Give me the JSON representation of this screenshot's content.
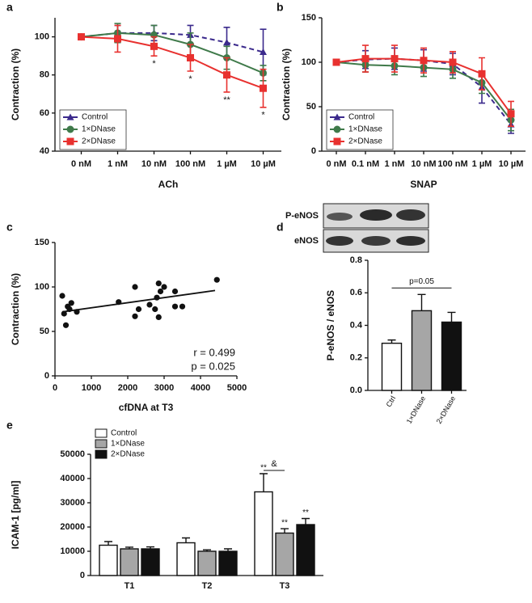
{
  "chart_data": [
    {
      "label": "a",
      "type": "line",
      "xlabel": "ACh",
      "ylabel": "Contraction (%)",
      "categories": [
        "0 nM",
        "1 nM",
        "10 nM",
        "100 nM",
        "1 µM",
        "10 µM"
      ],
      "ylim": [
        40,
        110
      ],
      "yticks": [
        40,
        60,
        80,
        100
      ],
      "legend": "lower left",
      "series": [
        {
          "name": "Control",
          "color": "#3b2a8c",
          "linestyle": "dashed",
          "marker": "triangle",
          "values": [
            100,
            102,
            102,
            101,
            97,
            92
          ],
          "errors": [
            0,
            4,
            4,
            5,
            8,
            12
          ]
        },
        {
          "name": "1×DNase",
          "color": "#3f7a4a",
          "linestyle": "solid",
          "marker": "circle",
          "values": [
            100,
            102,
            101,
            96,
            89,
            81
          ],
          "errors": [
            0,
            5,
            5,
            6,
            6,
            4
          ]
        },
        {
          "name": "2×DNase",
          "color": "#e8312f",
          "linestyle": "solid",
          "marker": "square",
          "values": [
            100,
            99,
            95,
            89,
            80,
            73
          ],
          "errors": [
            0,
            7,
            5,
            7,
            9,
            10
          ]
        }
      ],
      "significance": [
        null,
        null,
        "*",
        "*",
        "**",
        "*"
      ]
    },
    {
      "label": "b",
      "type": "line",
      "xlabel": "SNAP",
      "ylabel": "Contraction (%)",
      "categories": [
        "0 nM",
        "0.1 nM",
        "1 nM",
        "10 nM",
        "100 nM",
        "1 µM",
        "10 µM"
      ],
      "ylim": [
        0,
        150
      ],
      "yticks": [
        0,
        50,
        100,
        150
      ],
      "legend": "lower left",
      "series": [
        {
          "name": "Control",
          "color": "#3b2a8c",
          "linestyle": "dashed",
          "marker": "triangle",
          "values": [
            100,
            103,
            104,
            102,
            98,
            72,
            30
          ],
          "errors": [
            0,
            10,
            12,
            12,
            12,
            18,
            10
          ]
        },
        {
          "name": "1×DNase",
          "color": "#3f7a4a",
          "linestyle": "solid",
          "marker": "circle",
          "values": [
            100,
            97,
            96,
            94,
            92,
            77,
            35
          ],
          "errors": [
            0,
            8,
            10,
            10,
            10,
            12,
            12
          ]
        },
        {
          "name": "2×DNase",
          "color": "#e8312f",
          "linestyle": "solid",
          "marker": "square",
          "values": [
            100,
            104,
            104,
            102,
            100,
            87,
            42
          ],
          "errors": [
            0,
            15,
            15,
            14,
            12,
            18,
            14
          ]
        }
      ]
    },
    {
      "label": "c",
      "type": "scatter",
      "xlabel": "cfDNA at T3",
      "ylabel": "Contraction (%)",
      "xlim": [
        0,
        5000
      ],
      "xticks": [
        0,
        1000,
        2000,
        3000,
        4000,
        5000
      ],
      "ylim": [
        0,
        150
      ],
      "yticks": [
        0,
        50,
        100,
        150
      ],
      "x": [
        200,
        250,
        300,
        350,
        400,
        450,
        600,
        1750,
        2200,
        2200,
        2300,
        2600,
        2750,
        2800,
        2850,
        2850,
        2900,
        3000,
        3300,
        3300,
        3500,
        4450
      ],
      "y": [
        90,
        70,
        57,
        78,
        75,
        82,
        72,
        83,
        100,
        67,
        75,
        80,
        75,
        88,
        104,
        66,
        95,
        100,
        95,
        78,
        78,
        108
      ],
      "fit": {
        "x": [
          200,
          4400
        ],
        "y": [
          72,
          96
        ]
      },
      "annotations": [
        "r = 0.499",
        "p = 0.025"
      ]
    },
    {
      "label": "d",
      "type": "bar",
      "ylabel": "P-eNOS / eNOS",
      "blot_labels": [
        "P-eNOS",
        "eNOS"
      ],
      "categories": [
        "Ctrl",
        "1×DNase",
        "2×DNase"
      ],
      "values": [
        0.29,
        0.49,
        0.42
      ],
      "errors": [
        0.02,
        0.1,
        0.06
      ],
      "colors": [
        "#ffffff",
        "#a6a6a6",
        "#111111"
      ],
      "ylim": [
        0,
        0.8
      ],
      "yticks": [
        {
          "value": 0,
          "label": "0.0"
        },
        0.2,
        0.4,
        0.6,
        0.8
      ],
      "bracket_label": "p=0.05"
    },
    {
      "label": "e",
      "type": "grouped_bar",
      "ylabel": "ICAM-1 [pg/ml]",
      "categories": [
        "T1",
        "T2",
        "T3"
      ],
      "ylim": [
        0,
        50000
      ],
      "yticks": [
        0,
        10000,
        20000,
        30000,
        40000,
        50000
      ],
      "legend": "upper left",
      "series": [
        {
          "name": "Control",
          "color": "#ffffff",
          "values": [
            12500,
            13500,
            34500
          ],
          "errors": [
            1500,
            2000,
            7500
          ],
          "significance": [
            null,
            null,
            "**"
          ]
        },
        {
          "name": "1×DNase",
          "color": "#a6a6a6",
          "values": [
            11000,
            10000,
            17500
          ],
          "errors": [
            700,
            600,
            1800
          ],
          "significance": [
            null,
            null,
            "**"
          ]
        },
        {
          "name": "2×DNase",
          "color": "#111111",
          "values": [
            11000,
            10000,
            21000
          ],
          "errors": [
            800,
            1000,
            2500
          ],
          "significance": [
            null,
            null,
            "**"
          ]
        }
      ],
      "bracket_label": "&"
    }
  ]
}
